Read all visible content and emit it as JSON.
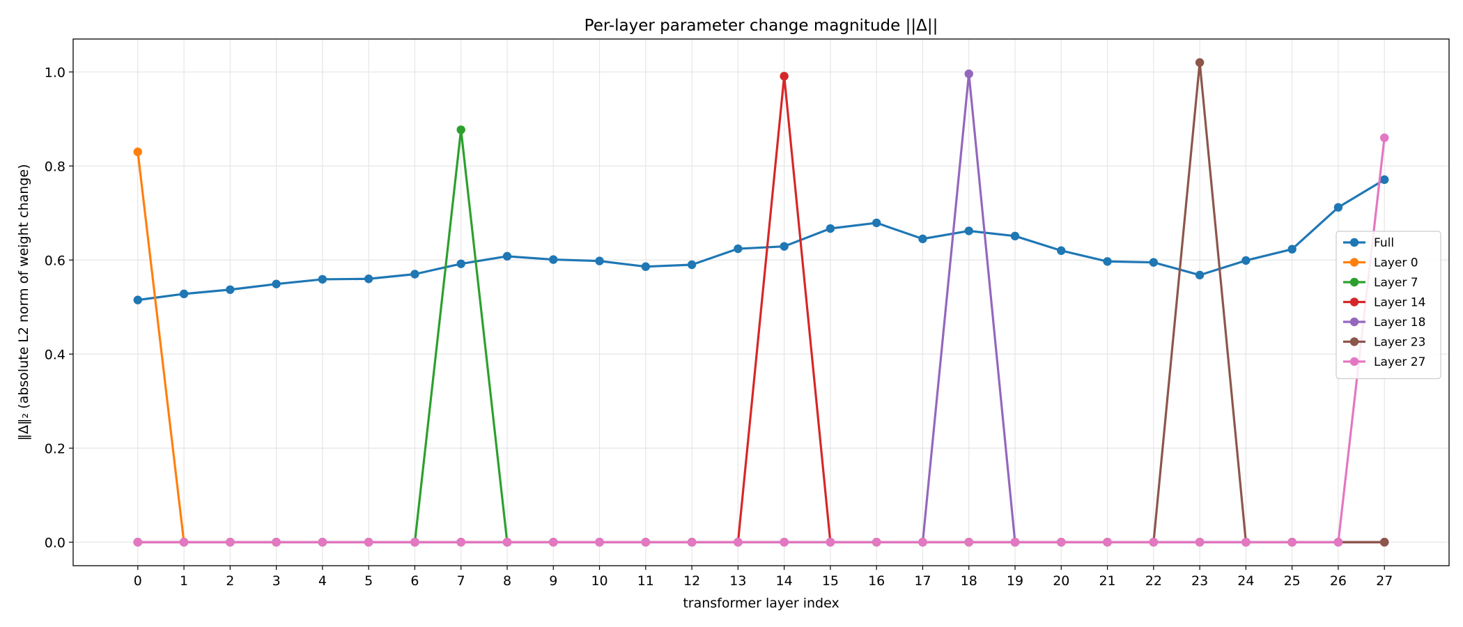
{
  "chart_data": {
    "type": "line",
    "title": "Per-layer parameter change magnitude ||Δ||",
    "xlabel": "transformer layer index",
    "ylabel": "‖Δ‖₂  (absolute L2 norm of weight change)",
    "x": [
      0,
      1,
      2,
      3,
      4,
      5,
      6,
      7,
      8,
      9,
      10,
      11,
      12,
      13,
      14,
      15,
      16,
      17,
      18,
      19,
      20,
      21,
      22,
      23,
      24,
      25,
      26,
      27
    ],
    "xlim": [
      -1.4,
      28.4
    ],
    "ylim": [
      -0.05,
      1.07
    ],
    "yticks": [
      0.0,
      0.2,
      0.4,
      0.6,
      0.8,
      1.0
    ],
    "ytick_labels": [
      "0.0",
      "0.2",
      "0.4",
      "0.6",
      "0.8",
      "1.0"
    ],
    "grid": true,
    "legend_position": "right",
    "series": [
      {
        "name": "Full",
        "color": "#1f77b4",
        "values": [
          0.515,
          0.528,
          0.537,
          0.549,
          0.559,
          0.56,
          0.57,
          0.592,
          0.608,
          0.601,
          0.598,
          0.586,
          0.59,
          0.624,
          0.629,
          0.667,
          0.679,
          0.645,
          0.662,
          0.651,
          0.62,
          0.597,
          0.595,
          0.568,
          0.599,
          0.623,
          0.712,
          0.771
        ]
      },
      {
        "name": "Layer 0",
        "color": "#ff7f0e",
        "values": [
          0.83,
          0,
          0,
          0,
          0,
          0,
          0,
          0,
          0,
          0,
          0,
          0,
          0,
          0,
          0,
          0,
          0,
          0,
          0,
          0,
          0,
          0,
          0,
          0,
          0,
          0,
          0,
          0
        ]
      },
      {
        "name": "Layer 7",
        "color": "#2ca02c",
        "values": [
          0,
          0,
          0,
          0,
          0,
          0,
          0,
          0.877,
          0,
          0,
          0,
          0,
          0,
          0,
          0,
          0,
          0,
          0,
          0,
          0,
          0,
          0,
          0,
          0,
          0,
          0,
          0,
          0
        ]
      },
      {
        "name": "Layer 14",
        "color": "#d62728",
        "values": [
          0,
          0,
          0,
          0,
          0,
          0,
          0,
          0,
          0,
          0,
          0,
          0,
          0,
          0,
          0.991,
          0,
          0,
          0,
          0,
          0,
          0,
          0,
          0,
          0,
          0,
          0,
          0,
          0
        ]
      },
      {
        "name": "Layer 18",
        "color": "#9467bd",
        "values": [
          0,
          0,
          0,
          0,
          0,
          0,
          0,
          0,
          0,
          0,
          0,
          0,
          0,
          0,
          0,
          0,
          0,
          0,
          0.996,
          0,
          0,
          0,
          0,
          0,
          0,
          0,
          0,
          0
        ]
      },
      {
        "name": "Layer 23",
        "color": "#8c564b",
        "values": [
          0,
          0,
          0,
          0,
          0,
          0,
          0,
          0,
          0,
          0,
          0,
          0,
          0,
          0,
          0,
          0,
          0,
          0,
          0,
          0,
          0,
          0,
          0,
          1.02,
          0,
          0,
          0,
          0
        ]
      },
      {
        "name": "Layer 27",
        "color": "#e377c2",
        "values": [
          0,
          0,
          0,
          0,
          0,
          0,
          0,
          0,
          0,
          0,
          0,
          0,
          0,
          0,
          0,
          0,
          0,
          0,
          0,
          0,
          0,
          0,
          0,
          0,
          0,
          0,
          0,
          0.86
        ]
      }
    ]
  }
}
